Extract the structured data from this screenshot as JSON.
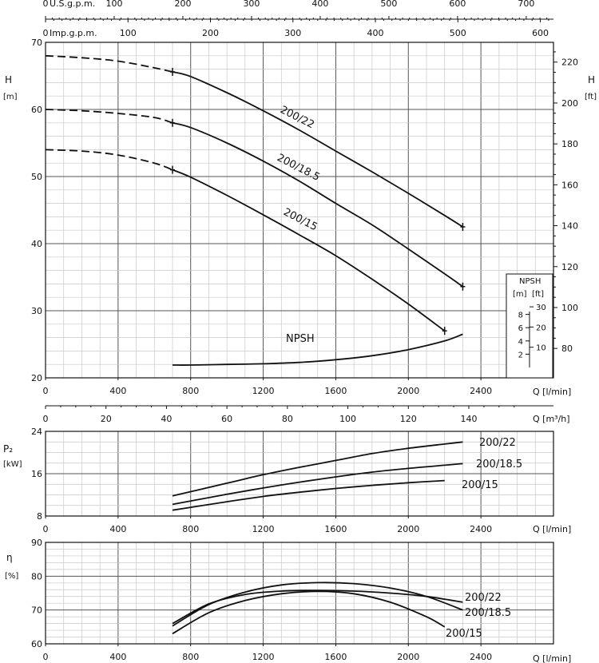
{
  "scales": {
    "usgpm": {
      "name": "U.S.g.p.m.",
      "ticks": [
        "0",
        "100",
        "200",
        "300",
        "400",
        "500",
        "600",
        "700"
      ]
    },
    "impgpm": {
      "name": "Imp.g.p.m.",
      "ticks": [
        "0",
        "100",
        "200",
        "300",
        "400",
        "500",
        "600"
      ]
    },
    "q_lmin_ticks": [
      "0",
      "400",
      "800",
      "1200",
      "1600",
      "2000",
      "2400"
    ],
    "q_lmin_label": "Q [l/min]",
    "q_m3h_ticks": [
      "0",
      "20",
      "40",
      "60",
      "80",
      "100",
      "120",
      "140"
    ],
    "q_m3h_label": "Q [m³/h]"
  },
  "labels": {
    "H": "H",
    "H_m": "[m]",
    "H_ft": "[ft]",
    "P2": "P₂",
    "P2_unit": "[kW]",
    "eta": "η",
    "eta_unit": "[%]",
    "npsh_curve": "NPSH",
    "npsh_box_title": "NPSH",
    "npsh_box_m": "[m]",
    "npsh_box_ft": "[ft]"
  },
  "chart_data": [
    {
      "type": "line",
      "panel": "head",
      "xlabel": "Q [l/min]",
      "ylabel": "H [m]",
      "xlim": [
        0,
        2800
      ],
      "ylim": [
        20,
        70
      ],
      "y_ticks": [
        "20",
        "30",
        "40",
        "50",
        "60",
        "70"
      ],
      "y2_label": "H [ft]",
      "y2_ticks": [
        "80",
        "100",
        "120",
        "140",
        "160",
        "180",
        "200",
        "220"
      ],
      "grid": true,
      "series": [
        {
          "name": "200/22",
          "x": [
            0,
            200,
            400,
            600,
            700,
            800,
            1000,
            1200,
            1400,
            1600,
            1800,
            2000,
            2200,
            2300
          ],
          "y": [
            68,
            67.7,
            67.2,
            66.2,
            65.6,
            64.9,
            62.5,
            59.8,
            56.9,
            53.8,
            50.7,
            47.5,
            44.2,
            42.5
          ]
        },
        {
          "name": "200/18.5",
          "x": [
            0,
            200,
            400,
            600,
            700,
            800,
            1000,
            1200,
            1400,
            1600,
            1800,
            2000,
            2200,
            2300
          ],
          "y": [
            60,
            59.8,
            59.4,
            58.8,
            58,
            57.3,
            55,
            52.3,
            49.3,
            46,
            42.8,
            39.2,
            35.5,
            33.6
          ]
        },
        {
          "name": "200/15",
          "x": [
            0,
            200,
            400,
            600,
            700,
            800,
            1000,
            1200,
            1400,
            1600,
            1800,
            2000,
            2200
          ],
          "y": [
            54,
            53.8,
            53.2,
            52,
            51,
            49.9,
            47.2,
            44.3,
            41.3,
            38.2,
            34.7,
            31,
            27
          ]
        },
        {
          "name": "NPSH",
          "x": [
            700,
            800,
            1000,
            1200,
            1400,
            1600,
            1800,
            2000,
            2200,
            2300
          ],
          "y": [
            21.9,
            21.9,
            22,
            22.1,
            22.3,
            22.7,
            23.3,
            24.2,
            25.5,
            26.5
          ]
        }
      ]
    },
    {
      "type": "line",
      "panel": "power",
      "xlabel": "Q [l/min]",
      "ylabel": "P2 [kW]",
      "xlim": [
        0,
        2800
      ],
      "ylim": [
        8,
        24
      ],
      "y_ticks": [
        "8",
        "16",
        "24"
      ],
      "grid": true,
      "series": [
        {
          "name": "200/22",
          "x": [
            700,
            1000,
            1200,
            1400,
            1600,
            1800,
            2000,
            2200,
            2300
          ],
          "y": [
            11.8,
            14.2,
            15.8,
            17.2,
            18.5,
            19.8,
            20.8,
            21.6,
            22
          ]
        },
        {
          "name": "200/18.5",
          "x": [
            700,
            1000,
            1200,
            1400,
            1600,
            1800,
            2000,
            2200,
            2300
          ],
          "y": [
            10.2,
            12.1,
            13.3,
            14.4,
            15.4,
            16.3,
            17,
            17.6,
            17.9
          ]
        },
        {
          "name": "200/15",
          "x": [
            700,
            1000,
            1200,
            1400,
            1600,
            1800,
            2000,
            2200
          ],
          "y": [
            9.1,
            10.7,
            11.7,
            12.5,
            13.2,
            13.8,
            14.3,
            14.7
          ]
        }
      ]
    },
    {
      "type": "line",
      "panel": "efficiency",
      "xlabel": "Q [l/min]",
      "ylabel": "η [%]",
      "xlim": [
        0,
        2800
      ],
      "ylim": [
        60,
        90
      ],
      "y_ticks": [
        "60",
        "70",
        "80",
        "90"
      ],
      "grid": true,
      "series": [
        {
          "name": "200/22",
          "x": [
            700,
            900,
            1100,
            1300,
            1500,
            1700,
            1900,
            2100,
            2300
          ],
          "y": [
            66,
            71.8,
            74.6,
            75.6,
            75.8,
            75.6,
            75,
            74,
            72.3
          ]
        },
        {
          "name": "200/18.5",
          "x": [
            700,
            900,
            1100,
            1300,
            1500,
            1700,
            1900,
            2100,
            2300
          ],
          "y": [
            65.3,
            71.6,
            75.3,
            77.4,
            78.1,
            77.8,
            76.5,
            74,
            70
          ]
        },
        {
          "name": "200/15",
          "x": [
            700,
            900,
            1100,
            1300,
            1500,
            1700,
            1900,
            2100,
            2200
          ],
          "y": [
            63,
            69.2,
            72.8,
            74.8,
            75.5,
            74.8,
            72.3,
            68,
            65
          ]
        }
      ]
    }
  ]
}
